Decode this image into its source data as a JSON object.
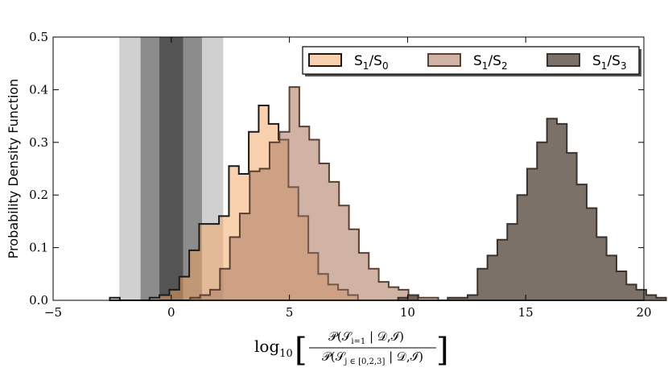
{
  "chart_data": {
    "type": "histogram",
    "xlim": [
      -5,
      20
    ],
    "ylim": [
      0,
      0.5
    ],
    "xticks": [
      -5,
      0,
      5,
      10,
      15,
      20
    ],
    "yticks": [
      0.0,
      0.1,
      0.2,
      0.3,
      0.4,
      0.5
    ],
    "ylabel": "Probability Density Function",
    "xlabel": {
      "prefix": "log",
      "sub": "10",
      "numerator": "𝒫(𝒮",
      "numerator_sub": "i=1",
      "numerator_tail": " | 𝒟,ℐ)",
      "denominator": "𝒫(𝒮",
      "denominator_sub": "j ∈ [0,2,3]",
      "denominator_tail": " | 𝒟,ℐ)"
    },
    "bin_width": 0.42,
    "shaded_bands": [
      {
        "x0": -2.2,
        "x1": 2.2,
        "color": "#c8c8c8"
      },
      {
        "x0": -1.3,
        "x1": 1.3,
        "color": "#808080"
      },
      {
        "x0": -0.5,
        "x1": 0.5,
        "color": "#4a4a4a"
      }
    ],
    "series": [
      {
        "name": "S1/S0",
        "legend_main": "S",
        "legend_sub1": "1",
        "legend_slash": "/S",
        "legend_sub2": "0",
        "fill": "#f4a460",
        "fill_opacity": 0.5,
        "edge": "#1a1a1a",
        "bins_start": -2.6,
        "values": [
          0.005,
          0.0,
          0.0,
          0.0,
          0.005,
          0.01,
          0.02,
          0.045,
          0.095,
          0.145,
          0.145,
          0.16,
          0.255,
          0.24,
          0.32,
          0.37,
          0.335,
          0.305,
          0.215,
          0.16,
          0.09,
          0.05,
          0.03,
          0.02,
          0.01
        ]
      },
      {
        "name": "S1/S2",
        "legend_main": "S",
        "legend_sub1": "1",
        "legend_slash": "/S",
        "legend_sub2": "2",
        "fill": "#b08068",
        "fill_opacity": 0.6,
        "edge": "#5a4030",
        "bins_start": 0.8,
        "values": [
          0.005,
          0.01,
          0.02,
          0.06,
          0.12,
          0.165,
          0.245,
          0.25,
          0.3,
          0.32,
          0.405,
          0.33,
          0.305,
          0.26,
          0.225,
          0.18,
          0.135,
          0.09,
          0.06,
          0.035,
          0.025,
          0.02,
          0.01,
          0.005,
          0.005
        ]
      },
      {
        "name": "S1/S3",
        "legend_main": "S",
        "legend_sub1": "1",
        "legend_slash": "/S",
        "legend_sub2": "3",
        "fill": "#5a4e44",
        "fill_opacity": 0.8,
        "edge": "#3a322c",
        "bins_start": 9.6,
        "values": [
          0.005,
          0.01,
          0.0,
          0.0,
          0.0,
          0.005,
          0.005,
          0.01,
          0.06,
          0.085,
          0.115,
          0.145,
          0.2,
          0.25,
          0.3,
          0.345,
          0.335,
          0.28,
          0.22,
          0.175,
          0.12,
          0.085,
          0.055,
          0.03,
          0.02,
          0.01,
          0.005
        ]
      }
    ],
    "legend_position": "top-right",
    "grid": false
  }
}
